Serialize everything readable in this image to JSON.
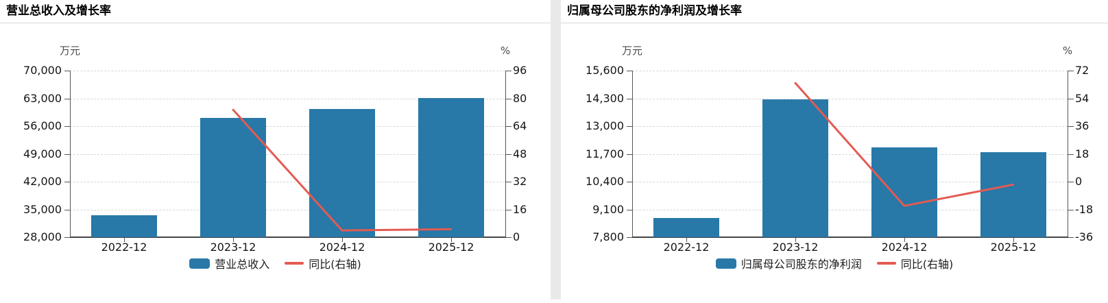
{
  "page": {
    "background": "#ffffff",
    "divider_color": "#e9e9e9"
  },
  "chart_data": [
    {
      "type": "bar",
      "title": "营业总收入及增长率",
      "categories": [
        "2022-12",
        "2023-12",
        "2024-12",
        "2025-12"
      ],
      "series": [
        {
          "name": "营业总收入",
          "kind": "bar",
          "axis": "left",
          "color": "#2878a8",
          "values": [
            33500,
            58100,
            60350,
            63150
          ]
        },
        {
          "name": "同比(右轴)",
          "kind": "line",
          "axis": "right",
          "color": "#e35b52",
          "values": [
            null,
            73.4,
            3.9,
            4.6
          ]
        }
      ],
      "left_axis": {
        "unit": "万元",
        "min": 28000,
        "max": 70000,
        "ticks": [
          70000,
          63000,
          56000,
          49000,
          42000,
          35000,
          28000
        ]
      },
      "right_axis": {
        "unit": "%",
        "min": 0,
        "max": 96,
        "ticks": [
          96,
          80,
          64,
          48,
          32,
          16,
          0
        ]
      },
      "legend": [
        "营业总收入",
        "同比(右轴)"
      ],
      "grid": "dashed horizontal",
      "legend_position": "bottom"
    },
    {
      "type": "bar",
      "title": "归属母公司股东的净利润及增长率",
      "categories": [
        "2022-12",
        "2023-12",
        "2024-12",
        "2025-12"
      ],
      "series": [
        {
          "name": "归属母公司股东的净利润",
          "kind": "bar",
          "axis": "left",
          "color": "#2878a8",
          "values": [
            8700,
            14260,
            12020,
            11790
          ]
        },
        {
          "name": "同比(右轴)",
          "kind": "line",
          "axis": "right",
          "color": "#e35b52",
          "values": [
            null,
            63.9,
            -15.7,
            -1.9
          ]
        }
      ],
      "left_axis": {
        "unit": "万元",
        "min": 7800,
        "max": 15600,
        "ticks": [
          15600,
          14300,
          13000,
          11700,
          10400,
          9100,
          7800
        ]
      },
      "right_axis": {
        "unit": "%",
        "min": -36,
        "max": 72,
        "ticks": [
          72,
          54,
          36,
          18,
          0,
          -18,
          -36
        ]
      },
      "legend": [
        "归属母公司股东的净利润",
        "同比(右轴)"
      ],
      "grid": "dashed horizontal",
      "legend_position": "bottom"
    }
  ]
}
